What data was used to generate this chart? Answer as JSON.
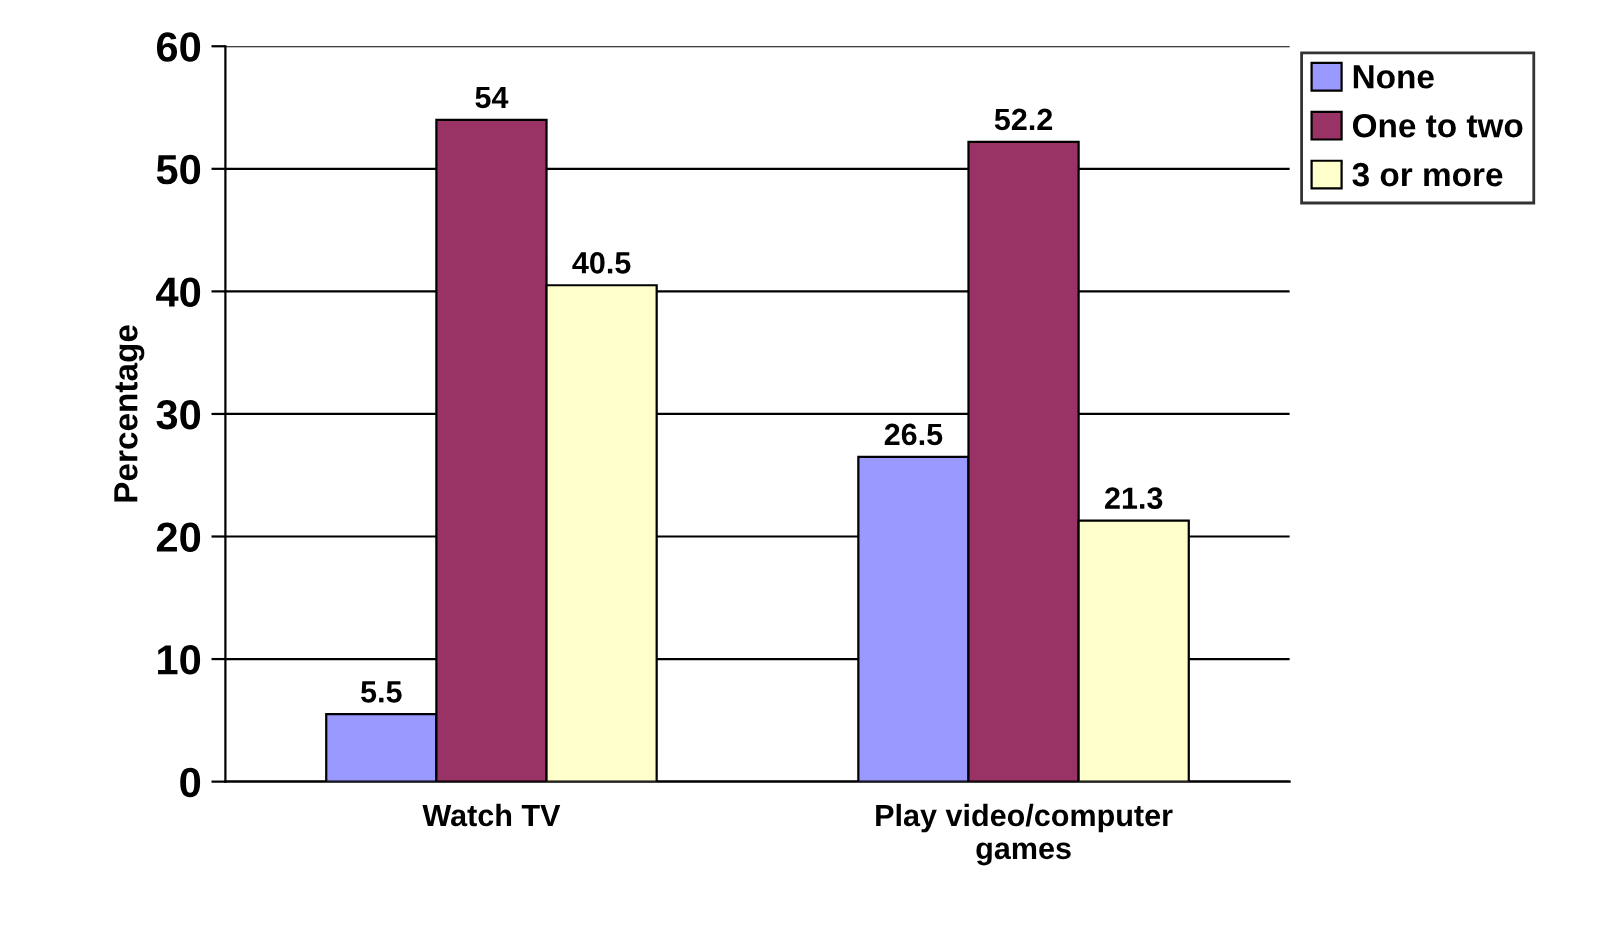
{
  "chart_data": {
    "type": "bar",
    "ylabel": "Percentage",
    "categories": [
      "Watch TV",
      "Play video/computer\ngames"
    ],
    "series": [
      {
        "name": "None",
        "color": "#9999ff",
        "values": [
          5.5,
          26.5
        ]
      },
      {
        "name": "One to two",
        "color": "#993366",
        "values": [
          54,
          52.2
        ]
      },
      {
        "name": "3 or more",
        "color": "#ffffcc",
        "values": [
          40.5,
          21.3
        ]
      }
    ],
    "ylim": [
      0,
      60
    ],
    "yticks": [
      0,
      10,
      20,
      30,
      40,
      50,
      60
    ],
    "grid": "y",
    "legend": "top right",
    "data_labels": true
  }
}
